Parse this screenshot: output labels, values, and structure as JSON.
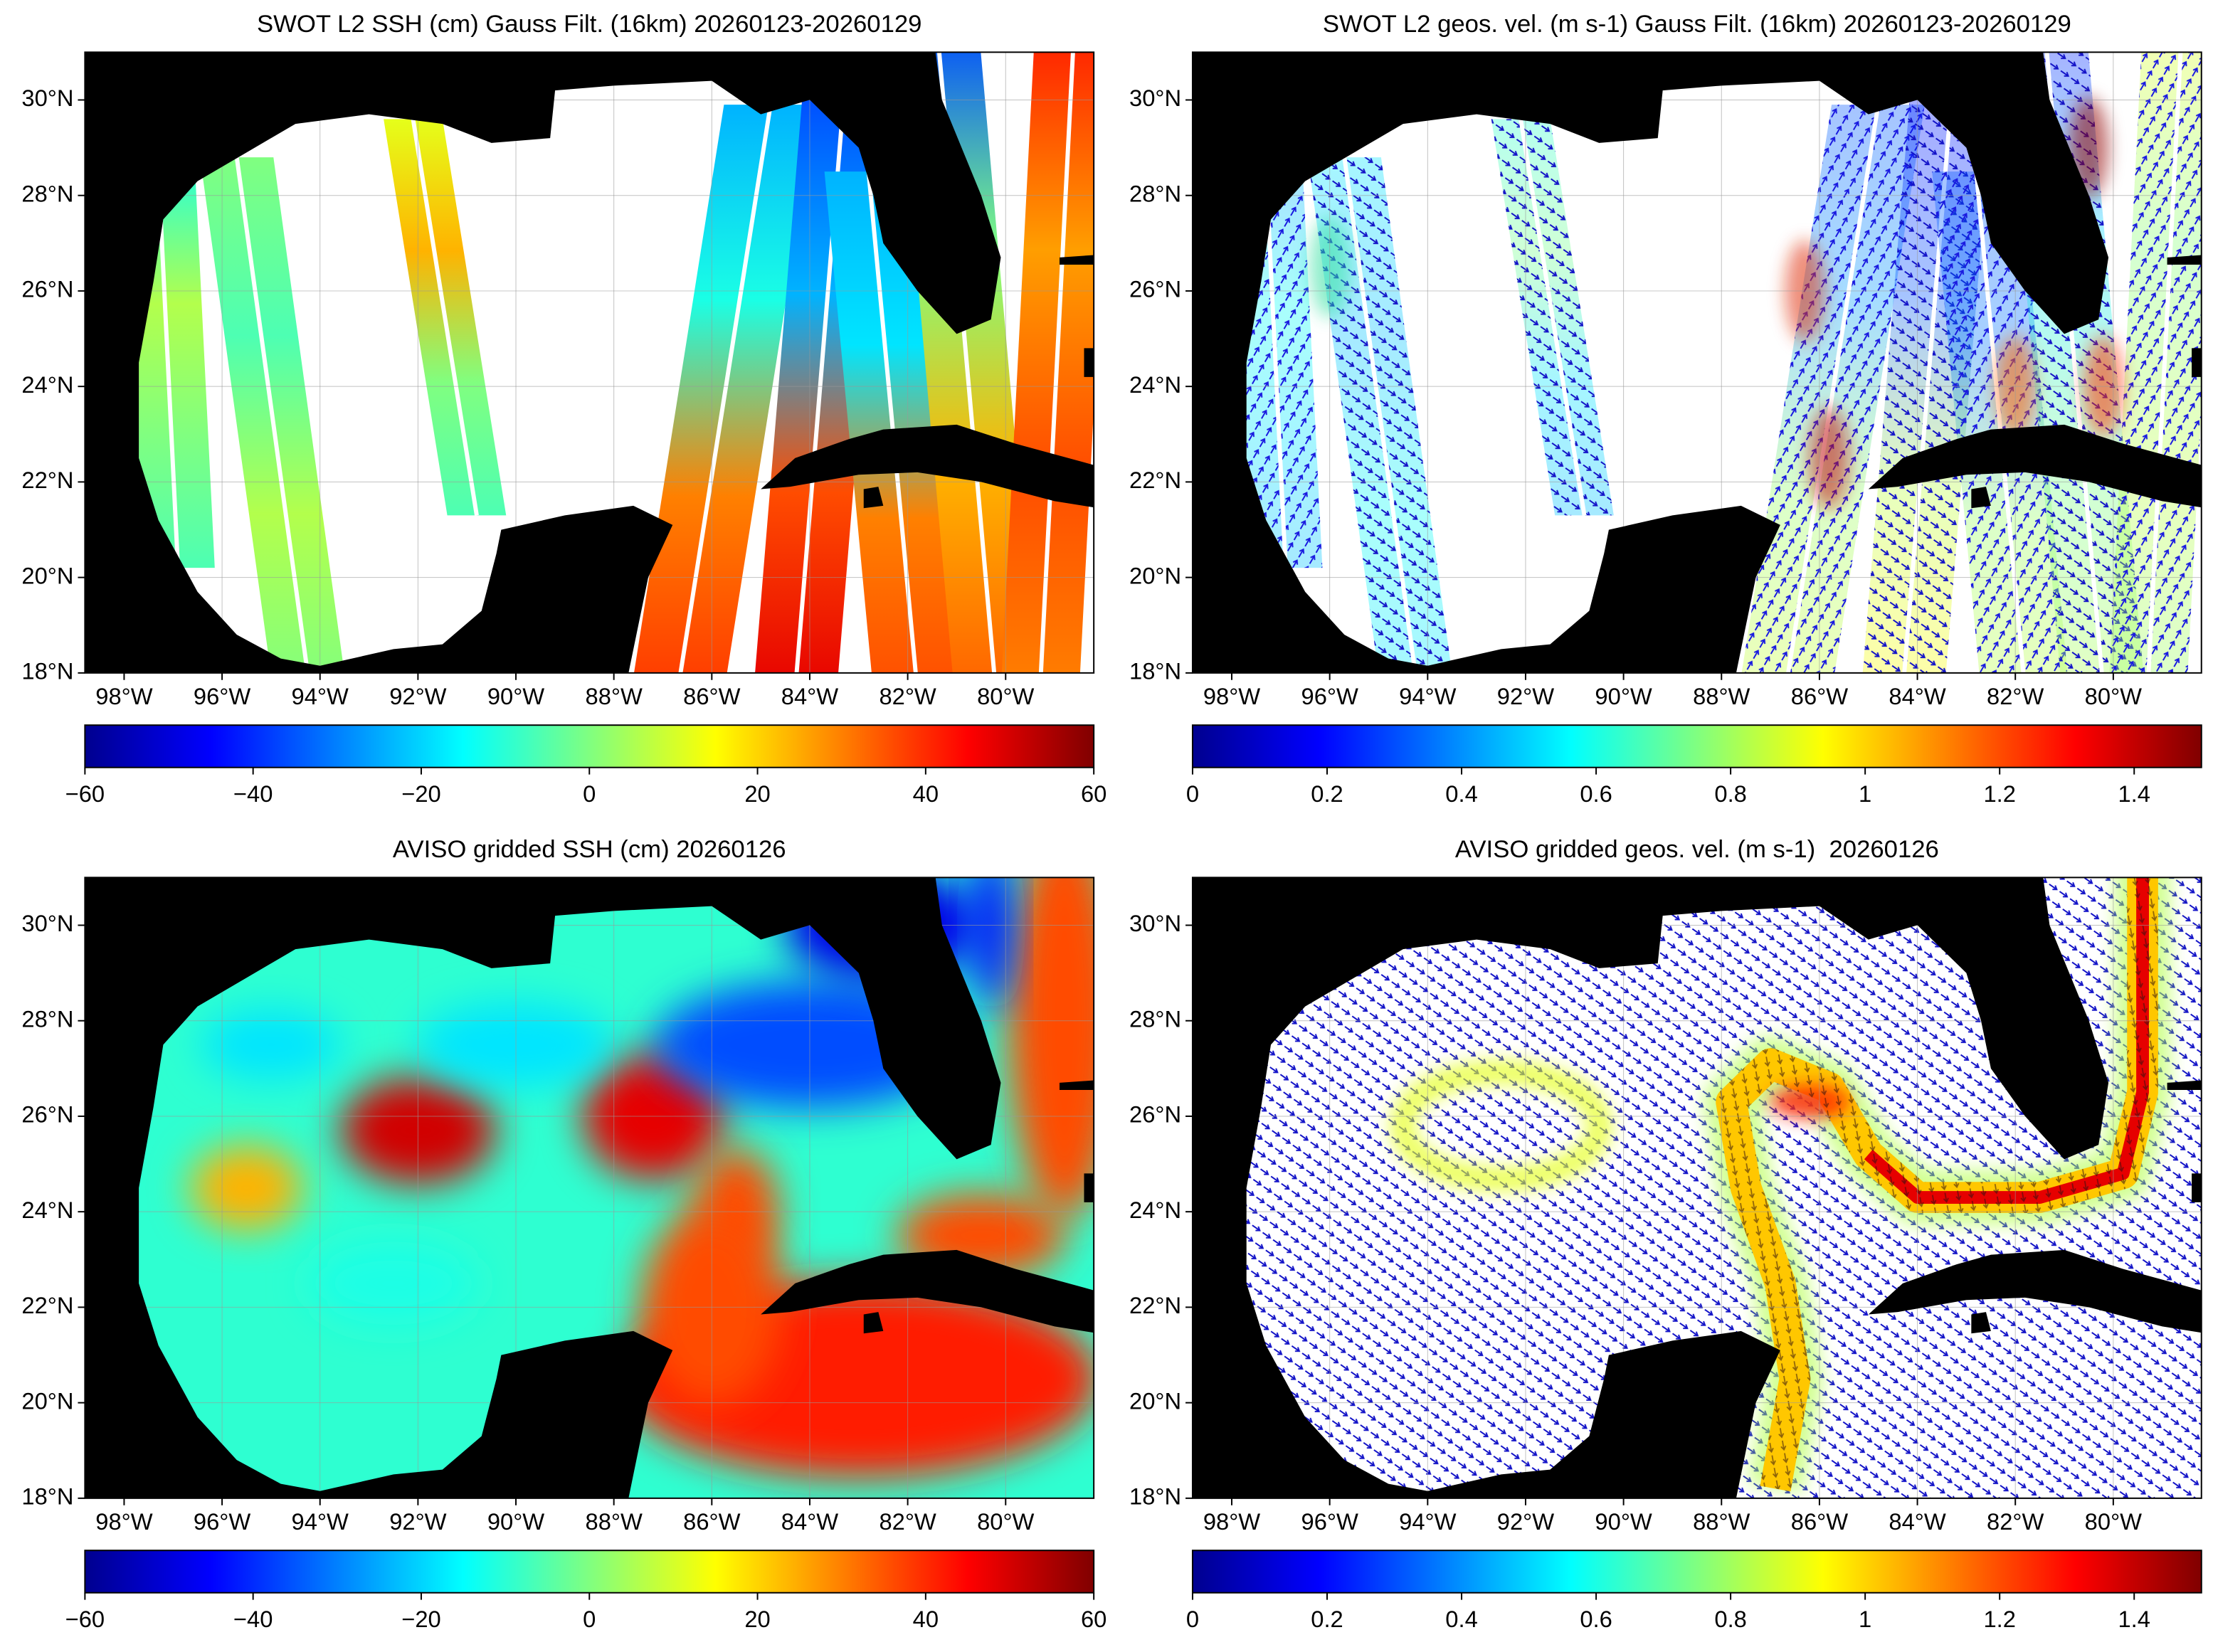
{
  "chart_data": [
    {
      "type": "map",
      "title": "SWOT L2 SSH (cm) Gauss Filt. (16km) 20260123-20260129",
      "xlim": [
        -98.8,
        -78.2
      ],
      "ylim": [
        18,
        31
      ],
      "grid": true,
      "colormap": "jet",
      "xticks": [
        {
          "value": -98,
          "label": "98°W"
        },
        {
          "value": -96,
          "label": "96°W"
        },
        {
          "value": -94,
          "label": "94°W"
        },
        {
          "value": -92,
          "label": "92°W"
        },
        {
          "value": -90,
          "label": "90°W"
        },
        {
          "value": -88,
          "label": "88°W"
        },
        {
          "value": -86,
          "label": "86°W"
        },
        {
          "value": -84,
          "label": "84°W"
        },
        {
          "value": -82,
          "label": "82°W"
        },
        {
          "value": -80,
          "label": "80°W"
        }
      ],
      "yticks": [
        {
          "value": 18,
          "label": "18°N"
        },
        {
          "value": 20,
          "label": "20°N"
        },
        {
          "value": 22,
          "label": "22°N"
        },
        {
          "value": 24,
          "label": "24°N"
        },
        {
          "value": 26,
          "label": "26°N"
        },
        {
          "value": 28,
          "label": "28°N"
        },
        {
          "value": 30,
          "label": "30°N"
        }
      ],
      "clim": [
        -60,
        60
      ],
      "cticks": [
        {
          "value": -60,
          "label": "−60"
        },
        {
          "value": -40,
          "label": "−40"
        },
        {
          "value": -20,
          "label": "−20"
        },
        0,
        20,
        40,
        60
      ]
    },
    {
      "type": "map",
      "title": "SWOT L2 geos. vel. (m s-1) Gauss Filt. (16km) 20260123-20260129",
      "xlim": [
        -98.8,
        -78.2
      ],
      "ylim": [
        18,
        31
      ],
      "grid": true,
      "colormap": "jet",
      "xticks": [
        {
          "value": -98,
          "label": "98°W"
        },
        {
          "value": -96,
          "label": "96°W"
        },
        {
          "value": -94,
          "label": "94°W"
        },
        {
          "value": -92,
          "label": "92°W"
        },
        {
          "value": -90,
          "label": "90°W"
        },
        {
          "value": -88,
          "label": "88°W"
        },
        {
          "value": -86,
          "label": "86°W"
        },
        {
          "value": -84,
          "label": "84°W"
        },
        {
          "value": -82,
          "label": "82°W"
        },
        {
          "value": -80,
          "label": "80°W"
        }
      ],
      "yticks": [
        {
          "value": 18,
          "label": "18°N"
        },
        {
          "value": 20,
          "label": "20°N"
        },
        {
          "value": 22,
          "label": "22°N"
        },
        {
          "value": 24,
          "label": "24°N"
        },
        {
          "value": 26,
          "label": "26°N"
        },
        {
          "value": 28,
          "label": "28°N"
        },
        {
          "value": 30,
          "label": "30°N"
        }
      ],
      "clim": [
        0,
        1.5
      ],
      "cticks": [
        0,
        0.2,
        0.4,
        0.6,
        0.8,
        1,
        1.2,
        1.4
      ]
    },
    {
      "type": "map",
      "title": "AVISO gridded SSH (cm) 20260126",
      "xlim": [
        -98.8,
        -78.2
      ],
      "ylim": [
        18,
        31
      ],
      "grid": true,
      "colormap": "jet",
      "xticks": [
        {
          "value": -98,
          "label": "98°W"
        },
        {
          "value": -96,
          "label": "96°W"
        },
        {
          "value": -94,
          "label": "94°W"
        },
        {
          "value": -92,
          "label": "92°W"
        },
        {
          "value": -90,
          "label": "90°W"
        },
        {
          "value": -88,
          "label": "88°W"
        },
        {
          "value": -86,
          "label": "86°W"
        },
        {
          "value": -84,
          "label": "84°W"
        },
        {
          "value": -82,
          "label": "82°W"
        },
        {
          "value": -80,
          "label": "80°W"
        }
      ],
      "yticks": [
        {
          "value": 18,
          "label": "18°N"
        },
        {
          "value": 20,
          "label": "20°N"
        },
        {
          "value": 22,
          "label": "22°N"
        },
        {
          "value": 24,
          "label": "24°N"
        },
        {
          "value": 26,
          "label": "26°N"
        },
        {
          "value": 28,
          "label": "28°N"
        },
        {
          "value": 30,
          "label": "30°N"
        }
      ],
      "clim": [
        -60,
        60
      ],
      "cticks": [
        {
          "value": -60,
          "label": "−60"
        },
        {
          "value": -40,
          "label": "−40"
        },
        {
          "value": -20,
          "label": "−20"
        },
        0,
        20,
        40,
        60
      ]
    },
    {
      "type": "map",
      "title": "AVISO gridded geos. vel. (m s-1)  20260126",
      "xlim": [
        -98.8,
        -78.2
      ],
      "ylim": [
        18,
        31
      ],
      "grid": true,
      "colormap": "jet",
      "xticks": [
        {
          "value": -98,
          "label": "98°W"
        },
        {
          "value": -96,
          "label": "96°W"
        },
        {
          "value": -94,
          "label": "94°W"
        },
        {
          "value": -92,
          "label": "92°W"
        },
        {
          "value": -90,
          "label": "90°W"
        },
        {
          "value": -88,
          "label": "88°W"
        },
        {
          "value": -86,
          "label": "86°W"
        },
        {
          "value": -84,
          "label": "84°W"
        },
        {
          "value": -82,
          "label": "82°W"
        },
        {
          "value": -80,
          "label": "80°W"
        }
      ],
      "yticks": [
        {
          "value": 18,
          "label": "18°N"
        },
        {
          "value": 20,
          "label": "20°N"
        },
        {
          "value": 22,
          "label": "22°N"
        },
        {
          "value": 24,
          "label": "24°N"
        },
        {
          "value": 26,
          "label": "26°N"
        },
        {
          "value": 28,
          "label": "28°N"
        },
        {
          "value": 30,
          "label": "30°N"
        }
      ],
      "clim": [
        0,
        1.5
      ],
      "cticks": [
        0,
        0.2,
        0.4,
        0.6,
        0.8,
        1,
        1.2,
        1.4
      ]
    }
  ]
}
